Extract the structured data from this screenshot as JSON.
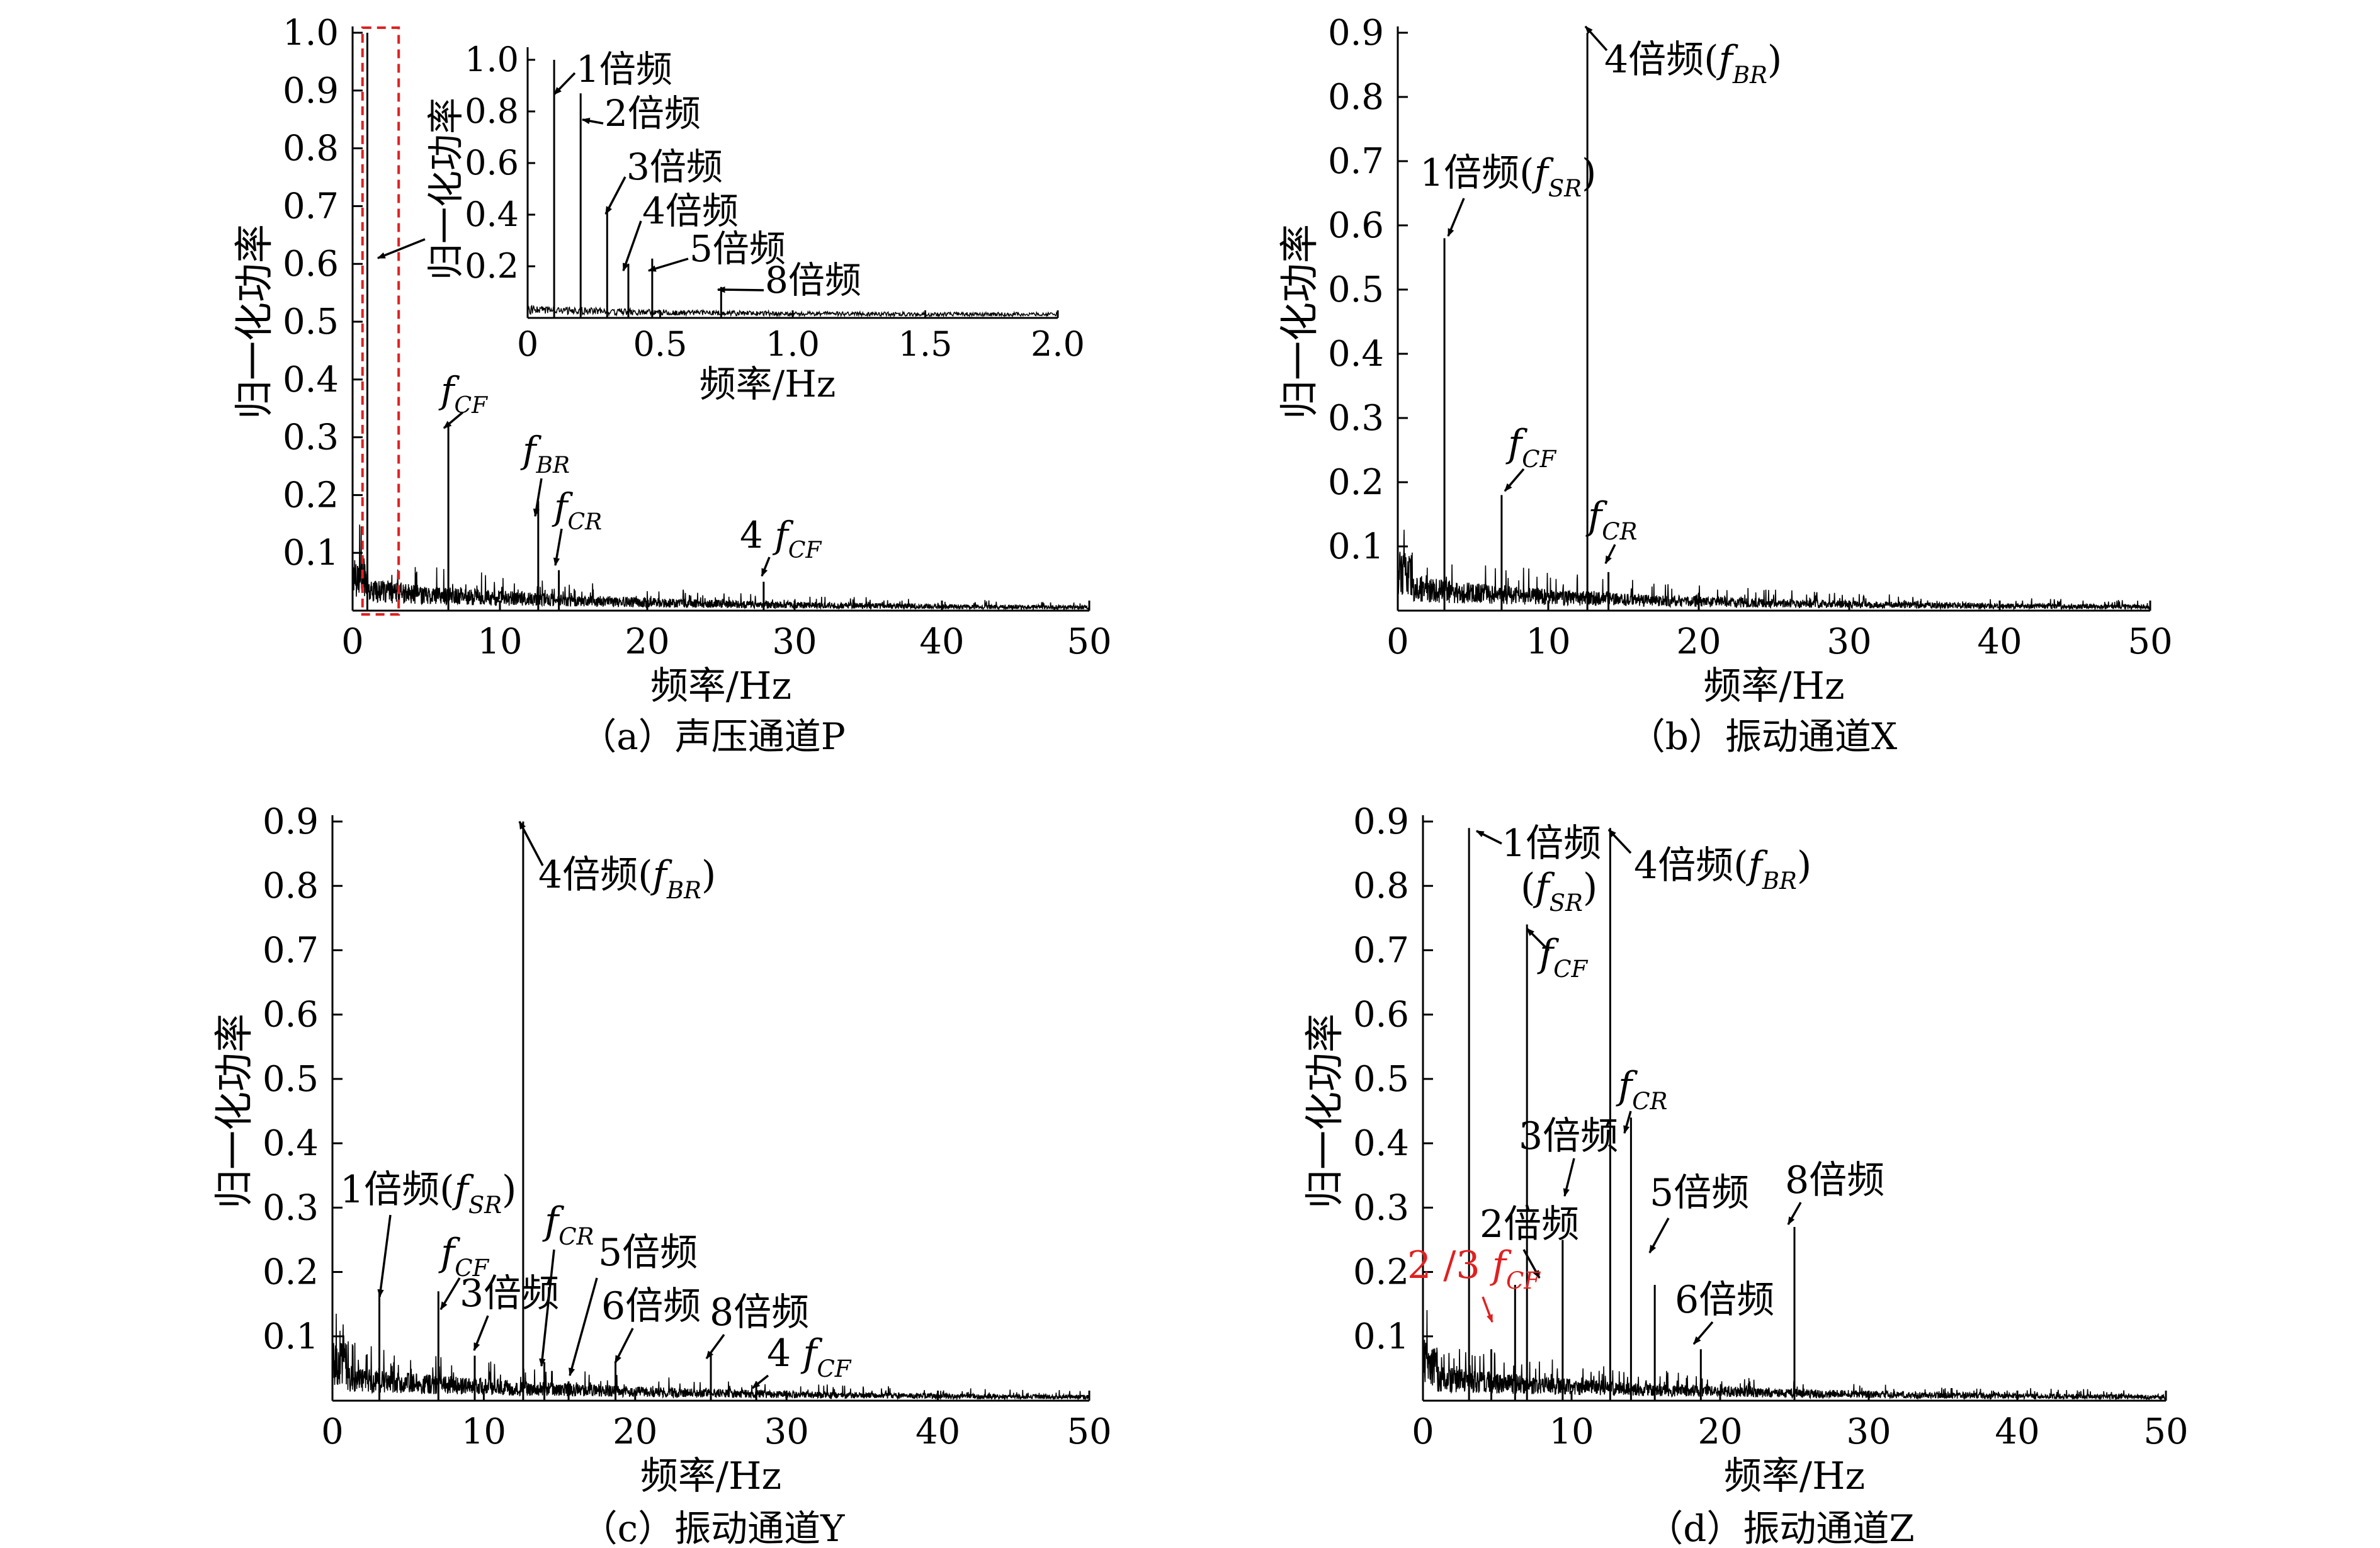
{
  "figure": {
    "panels": [
      {
        "id": "a",
        "caption": "（a）声压通道P",
        "chart": {
          "type": "line",
          "xlabel": "频率/Hz",
          "ylabel": "归一化功率",
          "xlim": [
            0,
            50
          ],
          "ylim": [
            0,
            1.0
          ],
          "xticks": [
            "0",
            "10",
            "20",
            "30",
            "40",
            "50"
          ],
          "yticks": [
            "0.1",
            "0.2",
            "0.3",
            "0.4",
            "0.5",
            "0.6",
            "0.7",
            "0.8",
            "0.9",
            "1.0"
          ],
          "peaks": [
            {
              "x": 1.0,
              "y": 1.0
            },
            {
              "x": 6.5,
              "y": 0.32
            },
            {
              "x": 12.6,
              "y": 0.19
            },
            {
              "x": 14.0,
              "y": 0.07
            },
            {
              "x": 27.9,
              "y": 0.05
            }
          ],
          "highlight_box": {
            "x0": 1.1,
            "x1": 2.7,
            "y0": 0.0,
            "y1": 1.0,
            "color": "#e02020"
          },
          "annotations": [
            {
              "text": "f",
              "sub": "CF",
              "x": 6.5,
              "y": 0.32
            },
            {
              "text": "f",
              "sub": "BR",
              "x": 12.6,
              "y": 0.19
            },
            {
              "text": "f",
              "sub": "CR",
              "x": 14.0,
              "y": 0.07
            },
            {
              "text": "4 f",
              "sub": "CF",
              "x": 27.9,
              "y": 0.05
            }
          ],
          "inset": {
            "xlabel": "频率/Hz",
            "ylabel": "归一化功率",
            "xlim": [
              0,
              2.0
            ],
            "ylim": [
              0,
              1.0
            ],
            "xticks": [
              "0",
              "0.5",
              "1.0",
              "1.5",
              "2.0"
            ],
            "yticks": [
              "0.2",
              "0.4",
              "0.6",
              "0.8",
              "1.0"
            ],
            "peaks": [
              {
                "x": 0.1,
                "y": 1.0
              },
              {
                "x": 0.2,
                "y": 0.87
              },
              {
                "x": 0.3,
                "y": 0.42
              },
              {
                "x": 0.38,
                "y": 0.21
              },
              {
                "x": 0.47,
                "y": 0.23
              },
              {
                "x": 0.73,
                "y": 0.12
              }
            ],
            "annotations": [
              "1倍频",
              "2倍频",
              "3倍频",
              "4倍频",
              "5倍频",
              "8倍频"
            ]
          }
        }
      },
      {
        "id": "b",
        "caption": "（b）振动通道X",
        "chart": {
          "type": "line",
          "xlabel": "频率/Hz",
          "ylabel": "归一化功率",
          "xlim": [
            0,
            50
          ],
          "ylim": [
            0,
            0.9
          ],
          "xticks": [
            "0",
            "10",
            "20",
            "30",
            "40",
            "50"
          ],
          "yticks": [
            "0.1",
            "0.2",
            "0.3",
            "0.4",
            "0.5",
            "0.6",
            "0.7",
            "0.8",
            "0.9"
          ],
          "peaks": [
            {
              "x": 3.1,
              "y": 0.58
            },
            {
              "x": 6.9,
              "y": 0.18
            },
            {
              "x": 12.6,
              "y": 0.9
            },
            {
              "x": 14.0,
              "y": 0.06
            }
          ],
          "annotations": [
            {
              "text": "1倍频(f",
              "sub": "SR",
              "tail": ")",
              "x": 3.1,
              "y": 0.58
            },
            {
              "text": "f",
              "sub": "CF",
              "x": 6.9,
              "y": 0.18
            },
            {
              "text": "4倍频(f",
              "sub": "BR",
              "tail": ")",
              "x": 12.6,
              "y": 0.9
            },
            {
              "text": "f",
              "sub": "CR",
              "x": 14.0,
              "y": 0.06
            }
          ]
        }
      },
      {
        "id": "c",
        "caption": "（c）振动通道Y",
        "chart": {
          "type": "line",
          "xlabel": "频率/Hz",
          "ylabel": "归一化功率",
          "xlim": [
            0,
            50
          ],
          "ylim": [
            0,
            0.9
          ],
          "xticks": [
            "0",
            "10",
            "20",
            "30",
            "40",
            "50"
          ],
          "yticks": [
            "0.1",
            "0.2",
            "0.3",
            "0.4",
            "0.5",
            "0.6",
            "0.7",
            "0.8",
            "0.9"
          ],
          "peaks": [
            {
              "x": 3.1,
              "y": 0.17
            },
            {
              "x": 7.0,
              "y": 0.17
            },
            {
              "x": 9.4,
              "y": 0.07
            },
            {
              "x": 12.6,
              "y": 0.9
            },
            {
              "x": 14.0,
              "y": 0.06
            },
            {
              "x": 15.6,
              "y": 0.03
            },
            {
              "x": 18.7,
              "y": 0.06
            },
            {
              "x": 25.0,
              "y": 0.07
            },
            {
              "x": 28.0,
              "y": 0.03
            }
          ],
          "annotations": [
            {
              "text": "1倍频(f",
              "sub": "SR",
              "tail": ")"
            },
            {
              "text": "f",
              "sub": "CF"
            },
            {
              "text": "3倍频"
            },
            {
              "text": "4倍频(f",
              "sub": "BR",
              "tail": ")"
            },
            {
              "text": "f",
              "sub": "CR"
            },
            {
              "text": "5倍频"
            },
            {
              "text": "6倍频"
            },
            {
              "text": "8倍频"
            },
            {
              "text": "4 f",
              "sub": "CF"
            }
          ]
        }
      },
      {
        "id": "d",
        "caption": "（d）振动通道Z",
        "chart": {
          "type": "line",
          "xlabel": "频率/Hz",
          "ylabel": "归一化功率",
          "xlim": [
            0,
            50
          ],
          "ylim": [
            0,
            0.9
          ],
          "xticks": [
            "0",
            "10",
            "20",
            "30",
            "40",
            "50"
          ],
          "yticks": [
            "0.1",
            "0.2",
            "0.3",
            "0.4",
            "0.5",
            "0.6",
            "0.7",
            "0.8",
            "0.9"
          ],
          "peaks": [
            {
              "x": 3.1,
              "y": 0.89
            },
            {
              "x": 4.6,
              "y": 0.08
            },
            {
              "x": 6.2,
              "y": 0.18
            },
            {
              "x": 7.0,
              "y": 0.74
            },
            {
              "x": 9.4,
              "y": 0.25
            },
            {
              "x": 12.6,
              "y": 0.89
            },
            {
              "x": 14.0,
              "y": 0.44
            },
            {
              "x": 15.6,
              "y": 0.18
            },
            {
              "x": 18.7,
              "y": 0.08
            },
            {
              "x": 25.0,
              "y": 0.27
            }
          ],
          "annotations": [
            {
              "text": "1倍频"
            },
            {
              "text": "(f",
              "sub": "SR",
              "tail": ")"
            },
            {
              "text": "4倍频(f",
              "sub": "BR",
              "tail": ")"
            },
            {
              "text": "f",
              "sub": "CF"
            },
            {
              "text": "f",
              "sub": "CR"
            },
            {
              "text": "3倍频"
            },
            {
              "text": "2倍频"
            },
            {
              "text": "5倍频"
            },
            {
              "text": "8倍频"
            },
            {
              "text": "6倍频"
            },
            {
              "text": "2 /3 f",
              "sub": "CF",
              "color": "#e02020"
            }
          ]
        }
      }
    ]
  }
}
